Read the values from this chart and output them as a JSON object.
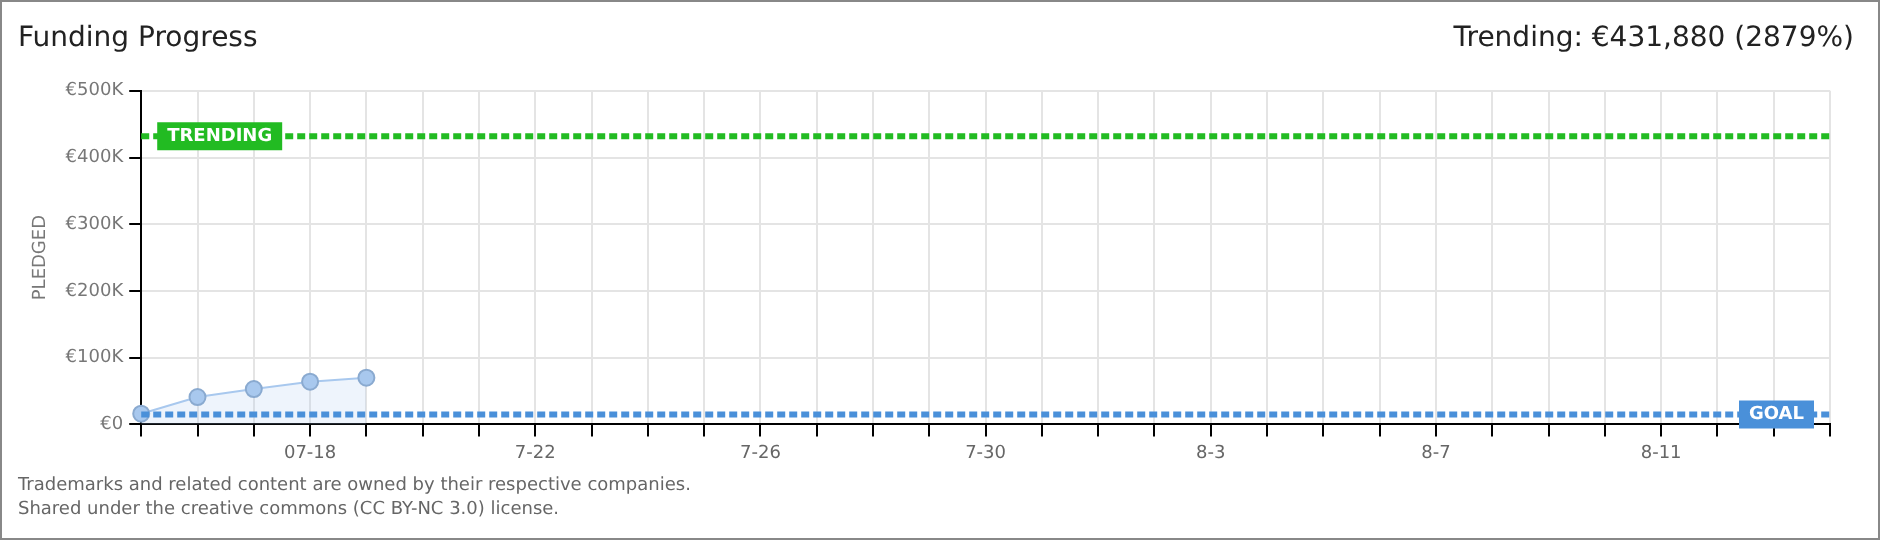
{
  "chart_data": {
    "type": "area",
    "title": "Funding Progress",
    "subtitle": "Trending: €431,880 (2879%)",
    "ylabel": "PLEDGED",
    "categories": [
      null,
      null,
      null,
      "07-18",
      null,
      null,
      null,
      "7-22",
      null,
      null,
      null,
      "7-26",
      null,
      null,
      null,
      "7-30",
      null,
      null,
      null,
      "8-3",
      null,
      null,
      null,
      "8-7",
      null,
      null,
      null,
      "8-11",
      null,
      null,
      null
    ],
    "series": [
      {
        "color": "#a8c8ee",
        "values": [
          16000,
          41000,
          53000,
          64000,
          70000,
          null,
          null,
          null,
          null,
          null,
          null,
          null,
          null,
          null,
          null,
          null,
          null,
          null,
          null,
          null,
          null,
          null,
          null,
          null,
          null,
          null,
          null,
          null,
          null,
          null,
          null
        ]
      }
    ],
    "ylim": [
      0,
      500000
    ],
    "yticks": [
      {
        "value": 0,
        "label": "€0"
      },
      {
        "value": 100000,
        "label": "€100K"
      },
      {
        "value": 200000,
        "label": "€200K"
      },
      {
        "value": 300000,
        "label": "€300K"
      },
      {
        "value": 400000,
        "label": "€400K"
      },
      {
        "value": 500000,
        "label": "€500K"
      }
    ],
    "ref_lines": [
      {
        "axis": "y",
        "value": 431880,
        "label": "TRENDING",
        "color": "#22bb22",
        "line_style": "dashed"
      },
      {
        "axis": "y",
        "value": 15000,
        "label": "GOAL",
        "color": "#4a90d9",
        "line_style": "dashed"
      }
    ],
    "grid": true,
    "marker": "circle",
    "legend": false,
    "annotations": [
      "Trademarks and related content are owned by their respective companies.",
      "Shared under the creative commons (CC BY-NC 3.0) license."
    ]
  }
}
